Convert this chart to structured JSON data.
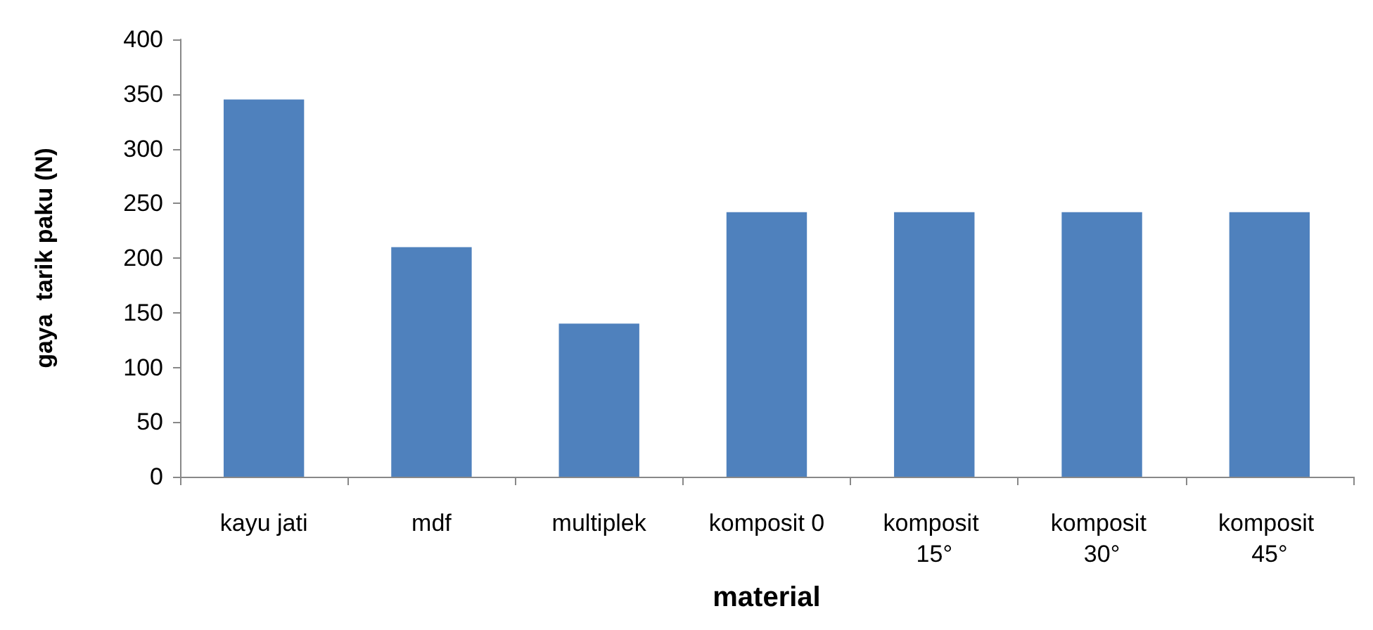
{
  "chart_data": {
    "type": "bar",
    "xlabel": "material",
    "ylabel": "gaya  tarik paku (N)",
    "categories": [
      "kayu jati",
      "mdf",
      "multiplek",
      "komposit 0",
      "komposit 15°",
      "komposit 30°",
      "komposit 45°"
    ],
    "values": [
      345,
      210,
      140,
      242,
      242,
      242,
      242
    ],
    "color": "#4f81bd",
    "ylim": [
      0,
      400
    ],
    "yticks": [
      0,
      50,
      100,
      150,
      200,
      250,
      300,
      350,
      400
    ],
    "grid": false
  }
}
